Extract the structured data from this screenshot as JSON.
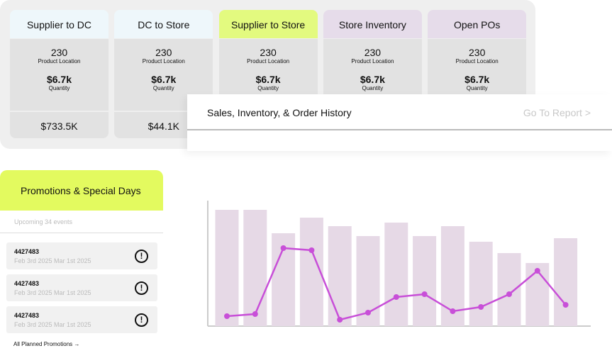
{
  "summary_cards": [
    {
      "title": "Supplier to DC",
      "color": "#eef7fb",
      "count": "230",
      "count_label": "Product Location",
      "amount": "$6.7k",
      "amount_label": "Quantity",
      "total": "$733.5K"
    },
    {
      "title": "DC to Store",
      "color": "#eef7fb",
      "count": "230",
      "count_label": "Product Location",
      "amount": "$6.7k",
      "amount_label": "Quantity",
      "total": "$44.1K"
    },
    {
      "title": "Supplier to Store",
      "color": "#e3fa7f",
      "count": "230",
      "count_label": "Product Location",
      "amount": "$6.7k",
      "amount_label": "Quantity"
    },
    {
      "title": "Store Inventory",
      "color": "#e6dcea",
      "count": "230",
      "count_label": "Product Location",
      "amount": "$6.7k",
      "amount_label": "Quantity"
    },
    {
      "title": "Open POs",
      "color": "#e6dcea",
      "count": "230",
      "count_label": "Product Location",
      "amount": "$6.7k",
      "amount_label": "Quantity"
    }
  ],
  "report": {
    "title": "Sales, Inventory, & Order History",
    "link": "Go To Report >",
    "chart": {
      "type": "bar-line",
      "ylim": [
        0,
        180
      ],
      "bars": {
        "color": "#e6d9e6",
        "values": [
          164,
          164,
          131,
          153,
          141,
          127,
          146,
          127,
          141,
          119,
          103,
          89,
          124
        ]
      },
      "line": {
        "color": "#c84fd8",
        "values": [
          14,
          17,
          110,
          107,
          9,
          19,
          41,
          45,
          21,
          27,
          45,
          78,
          30
        ]
      }
    }
  },
  "promotions": {
    "title": "Promotions & Special Days",
    "subtitle": "Upcoming 34 events",
    "events": [
      {
        "id": "4427483",
        "dates": "Feb 3rd 2025 Mar 1st 2025"
      },
      {
        "id": "4427483",
        "dates": "Feb 3rd 2025 Mar 1st 2025"
      },
      {
        "id": "4427483",
        "dates": "Feb 3rd 2025 Mar 1st 2025"
      }
    ],
    "link": "All Planned Promotions →"
  }
}
